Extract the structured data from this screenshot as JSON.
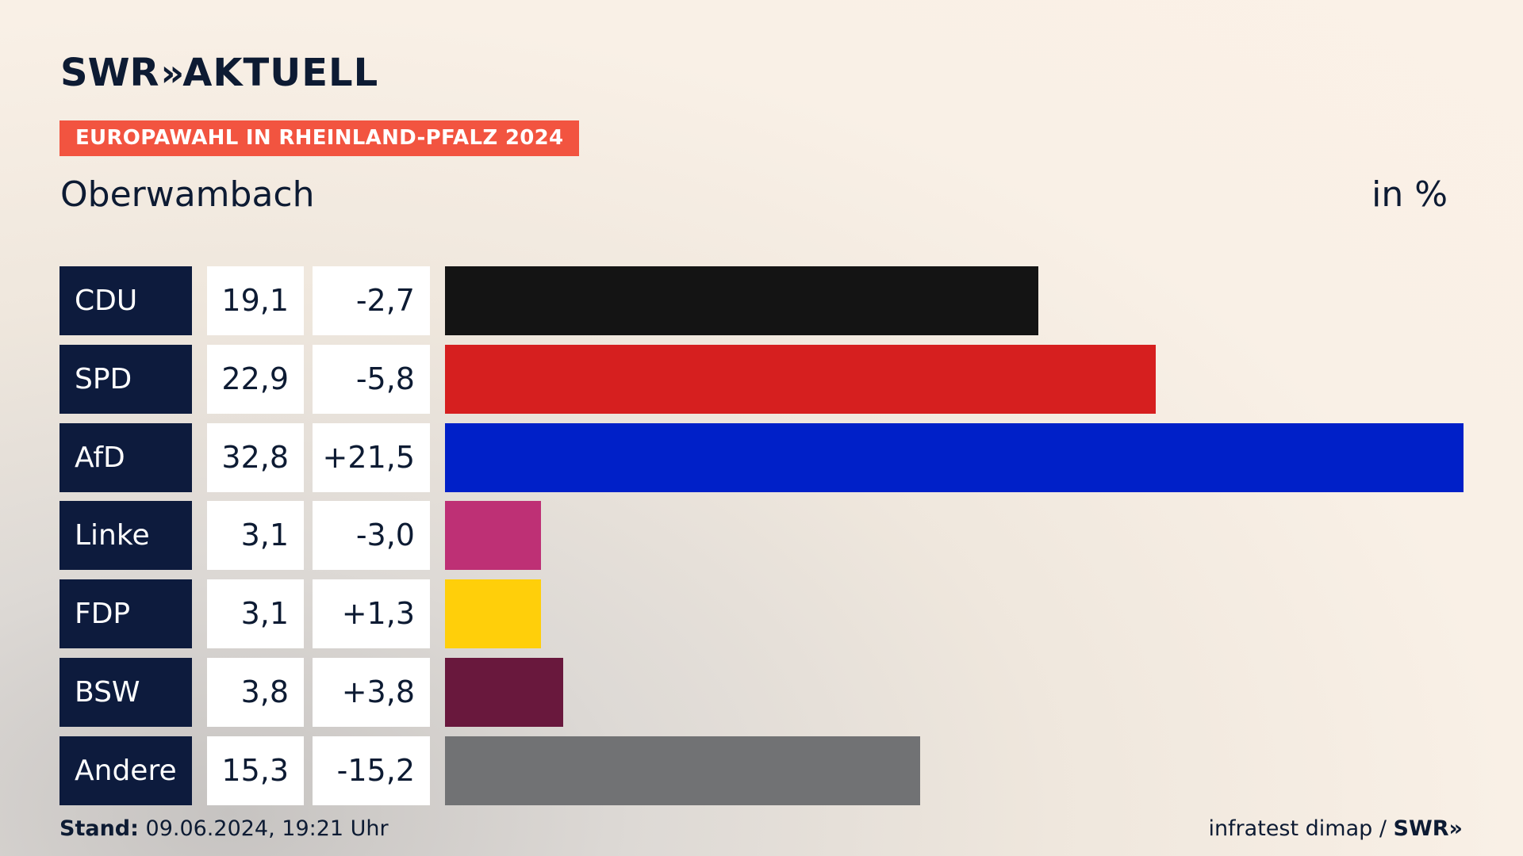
{
  "brand": {
    "logo_main": "SWR",
    "logo_chevrons": "»",
    "logo_product": "AKTUELL"
  },
  "header": {
    "tag": "EUROPAWAHL IN RHEINLAND-PFALZ 2024",
    "place": "Oberwambach",
    "unit": "in %"
  },
  "footer": {
    "stand_label": "Stand:",
    "stand_value": "09.06.2024, 19:21 Uhr",
    "source": "infratest dimap / ",
    "source_brand": "SWR»"
  },
  "chart_data": {
    "type": "bar",
    "orientation": "horizontal",
    "title": "Oberwambach",
    "unit": "in %",
    "xlim": [
      0,
      32.8
    ],
    "grid": false,
    "categories": [
      "CDU",
      "SPD",
      "AfD",
      "Linke",
      "FDP",
      "BSW",
      "Andere"
    ],
    "values": [
      19.1,
      22.9,
      32.8,
      3.1,
      3.1,
      3.8,
      15.3
    ],
    "value_labels": [
      "19,1",
      "22,9",
      "32,8",
      "3,1",
      "3,1",
      "3,8",
      "15,3"
    ],
    "changes": [
      -2.7,
      -5.8,
      21.5,
      -3.0,
      1.3,
      3.8,
      -15.2
    ],
    "change_labels": [
      "-2,7",
      "-5,8",
      "+21,5",
      "-3,0",
      "+1,3",
      "+3,8",
      "-15,2"
    ],
    "colors": [
      "#141414",
      "#d61f1f",
      "#0020c8",
      "#be3075",
      "#ffcf0a",
      "#69183d",
      "#717274"
    ]
  }
}
